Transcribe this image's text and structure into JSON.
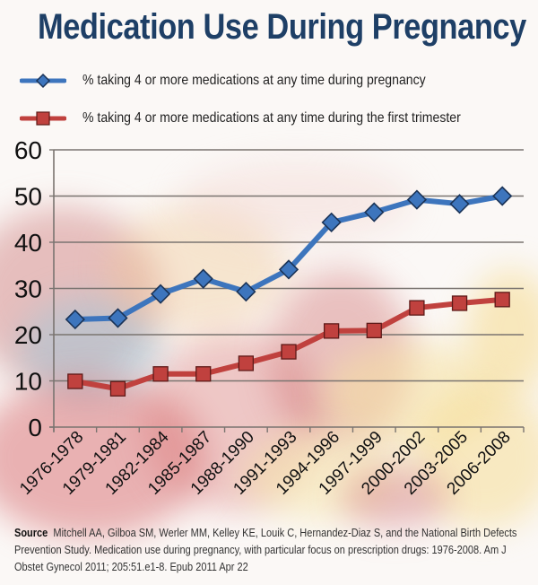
{
  "chart_data": {
    "type": "line",
    "title": "Medication Use During Pregnancy",
    "xlabel": "",
    "ylabel": "",
    "categories": [
      "1976-1978",
      "1979-1981",
      "1982-1984",
      "1985-1987",
      "1988-1990",
      "1991-1993",
      "1994-1996",
      "1997-1999",
      "2000-2002",
      "2003-2005",
      "2006-2008"
    ],
    "yticks": [
      "0",
      "10",
      "20",
      "30",
      "40",
      "50",
      "60"
    ],
    "ylim": [
      0,
      60
    ],
    "grid": true,
    "legend_position": "top",
    "series": [
      {
        "name": "% taking 4 or more medications at any time during pregnancy",
        "color": "#3d75bd",
        "marker": "diamond",
        "values": [
          23.3,
          23.6,
          28.8,
          32.1,
          29.3,
          34.1,
          44.3,
          46.5,
          49.2,
          48.3,
          50.0
        ]
      },
      {
        "name": "% taking 4 or more medications at any time during the first trimester",
        "color": "#c0413e",
        "marker": "square",
        "values": [
          9.9,
          8.3,
          11.5,
          11.5,
          13.8,
          16.3,
          20.8,
          20.9,
          25.8,
          26.8,
          27.6
        ]
      }
    ]
  },
  "source": {
    "label": "Source",
    "text": "Mitchell AA, Gilboa SM, Werler MM, Kelley KE, Louik C, Hernandez-Diaz S, and the National Birth Defects Prevention Study. Medication use during pregnancy, with particular focus on prescription drugs: 1976-2008. Am J Obstet Gynecol 2011; 205:51.e1-8. Epub 2011 Apr 22"
  }
}
